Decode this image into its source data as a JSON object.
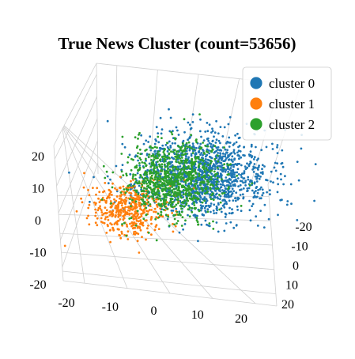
{
  "chart_data": {
    "type": "scatter",
    "dimensions": 3,
    "title": "True News Cluster (count=53656)",
    "axes": {
      "x": {
        "ticks": [
          "-20",
          "-10",
          "0",
          "10",
          "20"
        ],
        "range": [
          -25,
          25
        ]
      },
      "y": {
        "ticks": [
          "-20",
          "-10",
          "0",
          "10",
          "20"
        ],
        "range": [
          -25,
          25
        ]
      },
      "z": {
        "ticks": [
          "-20",
          "-10",
          "0",
          "10",
          "20"
        ],
        "range": [
          -20,
          25
        ]
      }
    },
    "grid": true,
    "legend_position": "top-right",
    "series": [
      {
        "name": "cluster 0",
        "color": "#1f77b4",
        "center": [
          8,
          4,
          14
        ],
        "spread": [
          9,
          8,
          6
        ]
      },
      {
        "name": "cluster 1",
        "color": "#ff7f0e",
        "center": [
          -10,
          10,
          2
        ],
        "spread": [
          5,
          5,
          4
        ]
      },
      {
        "name": "cluster 2",
        "color": "#2ca02c",
        "center": [
          -2,
          -2,
          8
        ],
        "spread": [
          6,
          6,
          6
        ]
      }
    ]
  }
}
